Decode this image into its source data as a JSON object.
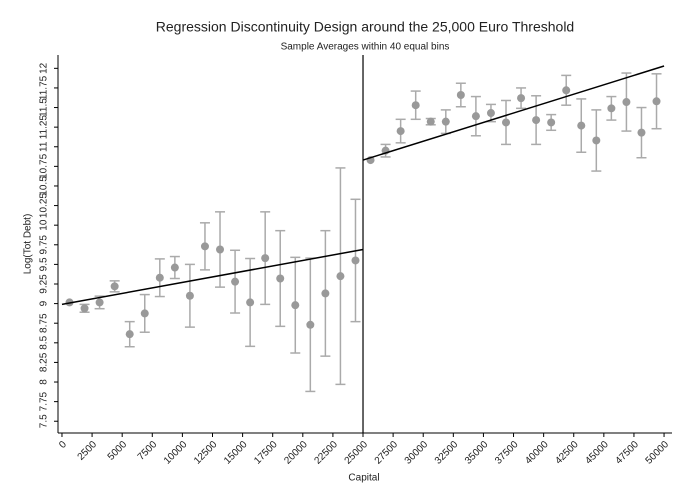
{
  "chart_data": {
    "type": "scatter",
    "title": "Regression Discontinuity Design around the 25,000 Euro Threshold",
    "subtitle": "Sample Averages within 40 equal bins",
    "x_label": "Capital",
    "y_label": "Log(Tot Debt)",
    "xlim": [
      -330,
      50660
    ],
    "ylim": [
      7.35,
      12.17
    ],
    "xticks": [
      0,
      2500,
      5000,
      7500,
      10000,
      12500,
      15000,
      17500,
      20000,
      22500,
      25000,
      27500,
      30000,
      32500,
      35000,
      37500,
      40000,
      42500,
      45000,
      47500,
      50000
    ],
    "yticks": [
      7.5,
      7.75,
      8,
      8.25,
      8.5,
      8.75,
      9,
      9.25,
      9.5,
      9.75,
      10,
      10.25,
      10.5,
      10.75,
      11,
      11.25,
      11.5,
      11.75,
      12
    ],
    "threshold": 25000,
    "series": [
      {
        "color": "#999999",
        "error_color": "#aaaaaa",
        "x": [
          625,
          1875,
          3125,
          4375,
          5625,
          6875,
          8125,
          9375,
          10625,
          11875,
          13125,
          14375,
          15625,
          16875,
          18125,
          19375,
          20625,
          21875,
          23125,
          24375,
          25625,
          26875,
          28125,
          29375,
          30625,
          31875,
          33125,
          34375,
          35625,
          36875,
          38125,
          39375,
          40625,
          41875,
          43125,
          44375,
          45625,
          46875,
          48125,
          49375
        ],
        "values": [
          9.015,
          8.94,
          9.015,
          9.22,
          8.61,
          8.875,
          9.33,
          9.46,
          9.1,
          9.73,
          9.69,
          9.28,
          9.015,
          9.58,
          9.32,
          8.98,
          8.73,
          9.13,
          9.35,
          9.55,
          10.83,
          10.95,
          11.2,
          11.53,
          11.32,
          11.32,
          11.66,
          11.39,
          11.43,
          11.31,
          11.62,
          11.34,
          11.31,
          11.72,
          11.27,
          11.08,
          11.49,
          11.57,
          11.18,
          11.58
        ],
        "errors": [
          null,
          0.05,
          0.08,
          0.07,
          0.16,
          0.24,
          0.24,
          0.14,
          0.4,
          0.3,
          0.48,
          0.4,
          0.56,
          0.59,
          0.61,
          0.61,
          0.85,
          0.8,
          1.38,
          0.78,
          null,
          0.08,
          0.15,
          0.18,
          0.04,
          0.15,
          0.15,
          0.25,
          0.11,
          0.28,
          0.13,
          0.31,
          0.1,
          0.19,
          0.34,
          0.39,
          0.15,
          0.37,
          0.32,
          0.35
        ]
      }
    ],
    "fit_lines": [
      {
        "color": "#000000",
        "x": [
          0,
          25000
        ],
        "values": [
          8.99,
          9.69
        ]
      },
      {
        "color": "#000000",
        "x": [
          25000,
          50000
        ],
        "values": [
          10.83,
          12.03
        ]
      }
    ]
  }
}
